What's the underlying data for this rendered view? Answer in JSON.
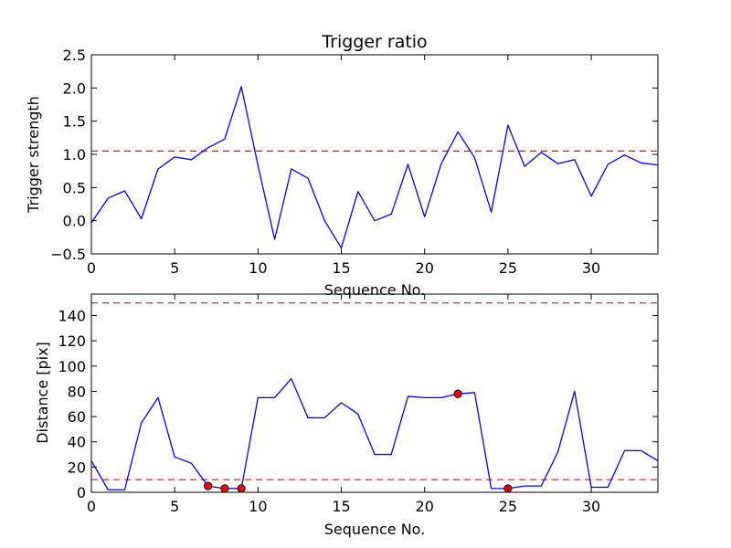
{
  "chart_data": [
    {
      "type": "line",
      "title": "Trigger ratio",
      "xlabel": "Sequence No.",
      "ylabel": "Trigger strength",
      "xlim": [
        0,
        34
      ],
      "ylim": [
        -0.5,
        2.5
      ],
      "xticks": [
        0,
        5,
        10,
        15,
        20,
        25,
        30
      ],
      "yticks": [
        -0.5,
        0.0,
        0.5,
        1.0,
        1.5,
        2.0,
        2.5
      ],
      "ytick_labels": [
        "−0.5",
        "0.0",
        "0.5",
        "1.0",
        "1.5",
        "2.0",
        "2.5"
      ],
      "grid": false,
      "series": [
        {
          "color": "#0000ff",
          "x": [
            0,
            1,
            2,
            3,
            4,
            5,
            6,
            7,
            8,
            9,
            10,
            11,
            12,
            13,
            14,
            15,
            16,
            17,
            18,
            19,
            20,
            21,
            22,
            23,
            24,
            25,
            26,
            27,
            28,
            29,
            30,
            31,
            32,
            33,
            34
          ],
          "y": [
            -0.03,
            0.34,
            0.45,
            0.03,
            0.78,
            0.96,
            0.92,
            1.1,
            1.23,
            2.02,
            0.83,
            -0.28,
            0.78,
            0.64,
            0.0,
            -0.41,
            0.44,
            0.0,
            0.1,
            0.85,
            0.06,
            0.86,
            1.34,
            0.95,
            0.13,
            1.44,
            0.82,
            1.03,
            0.86,
            0.92,
            0.37,
            0.85,
            0.99,
            0.87,
            0.84
          ]
        }
      ],
      "reference_lines": [
        {
          "orientation": "horizontal",
          "y": 1.05,
          "color": "#ff0000",
          "style": "dashed"
        }
      ]
    },
    {
      "type": "line",
      "title": "",
      "xlabel": "Sequence No.",
      "ylabel": "Distance [pix]",
      "xlim": [
        0,
        34
      ],
      "ylim": [
        0,
        157
      ],
      "xticks": [
        0,
        5,
        10,
        15,
        20,
        25,
        30
      ],
      "yticks": [
        0,
        20,
        40,
        60,
        80,
        100,
        120,
        140
      ],
      "grid": false,
      "series": [
        {
          "color": "#0000ff",
          "x": [
            0,
            1,
            2,
            3,
            4,
            5,
            6,
            7,
            8,
            9,
            10,
            11,
            12,
            13,
            14,
            15,
            16,
            17,
            18,
            19,
            20,
            21,
            22,
            23,
            24,
            25,
            26,
            27,
            28,
            29,
            30,
            31,
            32,
            33,
            34
          ],
          "y": [
            25,
            2,
            2,
            55,
            75,
            28,
            23,
            5,
            3,
            3,
            75,
            75,
            90,
            59,
            59,
            71,
            62,
            30,
            30,
            76,
            75,
            75,
            78,
            79,
            3,
            3,
            5,
            5,
            32,
            80,
            4,
            4,
            33,
            33,
            25
          ]
        }
      ],
      "markers": {
        "color": "#ff0000",
        "points": [
          {
            "x": 7,
            "y": 5
          },
          {
            "x": 8,
            "y": 3
          },
          {
            "x": 9,
            "y": 3
          },
          {
            "x": 22,
            "y": 78
          },
          {
            "x": 25,
            "y": 3
          }
        ]
      },
      "reference_lines": [
        {
          "orientation": "horizontal",
          "y": 150,
          "color": "#ff0000",
          "style": "dashed"
        },
        {
          "orientation": "horizontal",
          "y": 10,
          "color": "#ff0000",
          "style": "dashed"
        }
      ]
    }
  ]
}
